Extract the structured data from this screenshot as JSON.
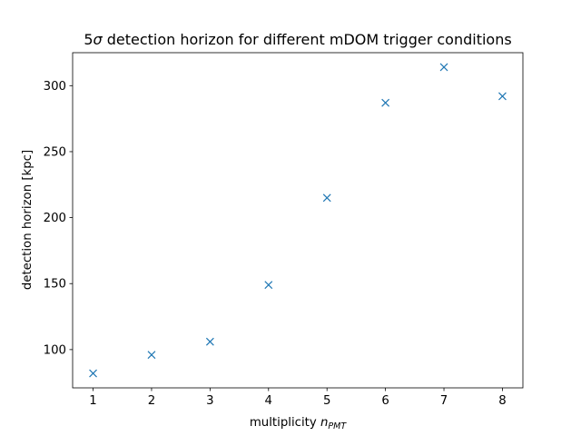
{
  "chart_data": {
    "type": "scatter",
    "title": "5σ detection horizon for different mDOM trigger conditions",
    "title_parts": {
      "prefix": "5",
      "sigma": "σ",
      "suffix": " detection horizon for different mDOM trigger conditions"
    },
    "xlabel": "multiplicity n_PMT",
    "xlabel_parts": {
      "text": "multiplicity ",
      "var": "n",
      "sub": "PMT"
    },
    "ylabel": "detection horizon [kpc]",
    "xlim": [
      0.65,
      8.35
    ],
    "ylim": [
      71,
      325
    ],
    "xticks": [
      1,
      2,
      3,
      4,
      5,
      6,
      7,
      8
    ],
    "yticks": [
      100,
      150,
      200,
      250,
      300
    ],
    "marker": "x",
    "color": "#1f77b4",
    "grid": false,
    "series": [
      {
        "x": [
          1,
          2,
          3,
          4,
          5,
          6,
          7,
          8
        ],
        "y": [
          82,
          96,
          106,
          149,
          215,
          287,
          314,
          292
        ]
      }
    ]
  }
}
